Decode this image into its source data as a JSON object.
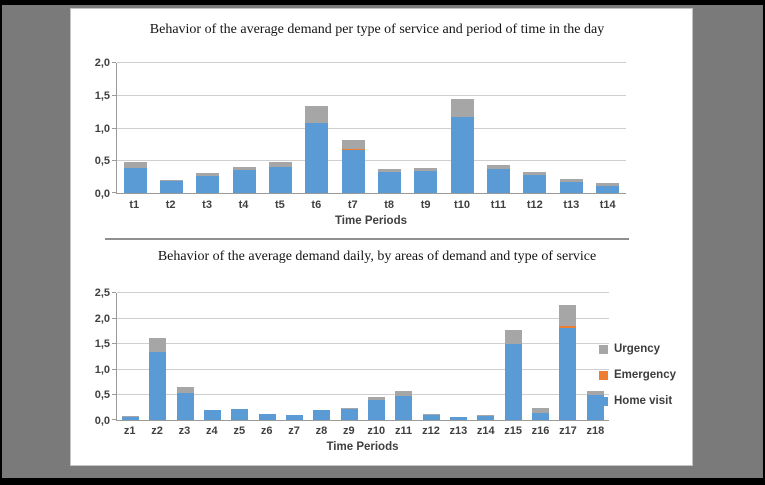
{
  "frame": {
    "outer_background": "#7a7a7a",
    "letterbox_color": "#000000",
    "panel_background": "#ffffff",
    "panel_border": "#c4c4c4",
    "separator_color": "#8f8f8f"
  },
  "legend": {
    "position": "right-of-bottom-chart",
    "items": [
      {
        "label": "Urgency",
        "color": "#A6A6A6"
      },
      {
        "label": "Emergency",
        "color": "#ED7D31"
      },
      {
        "label": "Home visit",
        "color": "#5B9BD5"
      }
    ]
  },
  "chart_data": [
    {
      "type": "bar",
      "stacked": true,
      "title": "Behavior of the average demand per type of service and period of time in the day",
      "xlabel": "Time Periods",
      "ylabel": "",
      "ylim": [
        0,
        2.0
      ],
      "ystep": 0.5,
      "y_ticks": [
        "0,0",
        "0,5",
        "1,0",
        "1,5",
        "2,0"
      ],
      "grid": true,
      "legend_shown": false,
      "categories": [
        "t1",
        "t2",
        "t3",
        "t4",
        "t5",
        "t6",
        "t7",
        "t8",
        "t9",
        "t10",
        "t11",
        "t12",
        "t13",
        "t14"
      ],
      "series": [
        {
          "name": "Home visit",
          "color": "#5B9BD5",
          "values": [
            0.38,
            0.19,
            0.26,
            0.35,
            0.4,
            1.07,
            0.65,
            0.32,
            0.33,
            1.16,
            0.37,
            0.27,
            0.17,
            0.11
          ]
        },
        {
          "name": "Emergency",
          "color": "#ED7D31",
          "values": [
            0,
            0,
            0,
            0,
            0,
            0,
            0.02,
            0,
            0,
            0,
            0,
            0,
            0,
            0
          ]
        },
        {
          "name": "Urgency",
          "color": "#A6A6A6",
          "values": [
            0.09,
            0.01,
            0.05,
            0.05,
            0.08,
            0.26,
            0.14,
            0.05,
            0.05,
            0.28,
            0.06,
            0.05,
            0.04,
            0.04
          ]
        }
      ]
    },
    {
      "type": "bar",
      "stacked": true,
      "title": "Behavior of the average demand daily, by areas of demand and type of service",
      "xlabel": "Time Periods",
      "ylabel": "",
      "ylim": [
        0,
        2.5
      ],
      "ystep": 0.5,
      "y_ticks": [
        "0,0",
        "0,5",
        "1,0",
        "1,5",
        "2,0",
        "2,5"
      ],
      "grid": true,
      "legend_shown": true,
      "categories": [
        "z1",
        "z2",
        "z3",
        "z4",
        "z5",
        "z6",
        "z7",
        "z8",
        "z9",
        "z10",
        "z11",
        "z12",
        "z13",
        "z14",
        "z15",
        "z16",
        "z17",
        "z18"
      ],
      "series": [
        {
          "name": "Home visit",
          "color": "#5B9BD5",
          "values": [
            0.05,
            1.33,
            0.53,
            0.19,
            0.21,
            0.11,
            0.09,
            0.19,
            0.22,
            0.4,
            0.47,
            0.1,
            0.05,
            0.08,
            1.49,
            0.13,
            1.8,
            0.48
          ]
        },
        {
          "name": "Emergency",
          "color": "#ED7D31",
          "values": [
            0,
            0,
            0,
            0,
            0,
            0,
            0,
            0,
            0,
            0,
            0,
            0,
            0,
            0,
            0,
            0,
            0.03,
            0
          ]
        },
        {
          "name": "Urgency",
          "color": "#A6A6A6",
          "values": [
            0.03,
            0.28,
            0.11,
            0.01,
            0.01,
            0.01,
            0.01,
            0.01,
            0.02,
            0.05,
            0.1,
            0.02,
            0.01,
            0.01,
            0.27,
            0.11,
            0.42,
            0.08
          ]
        }
      ]
    }
  ]
}
